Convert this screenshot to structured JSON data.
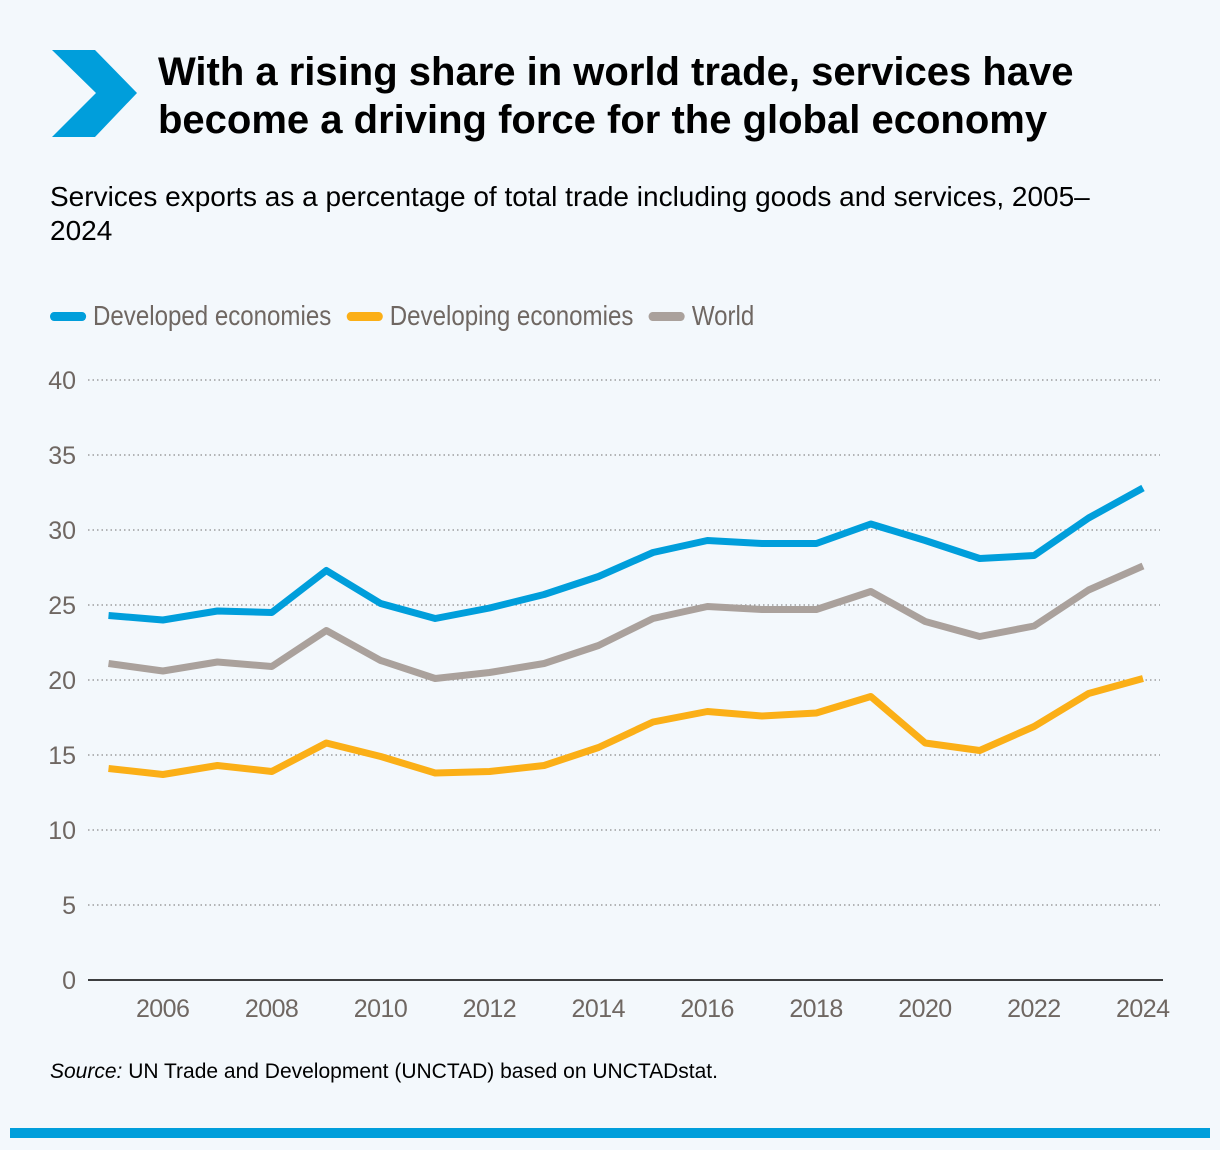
{
  "title": "With a rising share in world trade, services have become a driving force for the global economy",
  "source_label": "Source:",
  "source_text": " UN Trade and Development (UNCTAD) based on UNCTADstat.",
  "colors": {
    "accent": "#009edb",
    "developed": "#009edb",
    "developing": "#fbaf17",
    "world": "#aaa19c"
  },
  "chart_data": {
    "type": "line",
    "title": "Services exports as a percentage of total trade including goods and services, 2005–2024",
    "xlabel": "",
    "ylabel": "",
    "ylim": [
      0,
      40
    ],
    "yticks": [
      0,
      5,
      10,
      15,
      20,
      25,
      30,
      35,
      40
    ],
    "xticks": [
      2006,
      2008,
      2010,
      2012,
      2014,
      2016,
      2018,
      2020,
      2022,
      2024
    ],
    "grid": "horizontal dotted",
    "legend": "top-left",
    "x": [
      2005,
      2006,
      2007,
      2008,
      2009,
      2010,
      2011,
      2012,
      2013,
      2014,
      2015,
      2016,
      2017,
      2018,
      2019,
      2020,
      2021,
      2022,
      2023,
      2024
    ],
    "series": [
      {
        "name": "Developed economies",
        "color": "#009edb",
        "values": [
          24.3,
          24.0,
          24.6,
          24.5,
          27.3,
          25.1,
          24.1,
          24.8,
          25.7,
          26.9,
          28.5,
          29.3,
          29.1,
          29.1,
          30.4,
          29.3,
          28.1,
          28.3,
          30.8,
          32.8
        ]
      },
      {
        "name": "Developing economies",
        "color": "#fbaf17",
        "values": [
          14.1,
          13.7,
          14.3,
          13.9,
          15.8,
          14.9,
          13.8,
          13.9,
          14.3,
          15.5,
          17.2,
          17.9,
          17.6,
          17.8,
          18.9,
          15.8,
          15.3,
          16.9,
          19.1,
          20.1
        ]
      },
      {
        "name": "World",
        "color": "#aaa19c",
        "values": [
          21.1,
          20.6,
          21.2,
          20.9,
          23.3,
          21.3,
          20.1,
          20.5,
          21.1,
          22.3,
          24.1,
          24.9,
          24.7,
          24.7,
          25.9,
          23.9,
          22.9,
          23.6,
          26.0,
          27.6
        ]
      }
    ]
  }
}
